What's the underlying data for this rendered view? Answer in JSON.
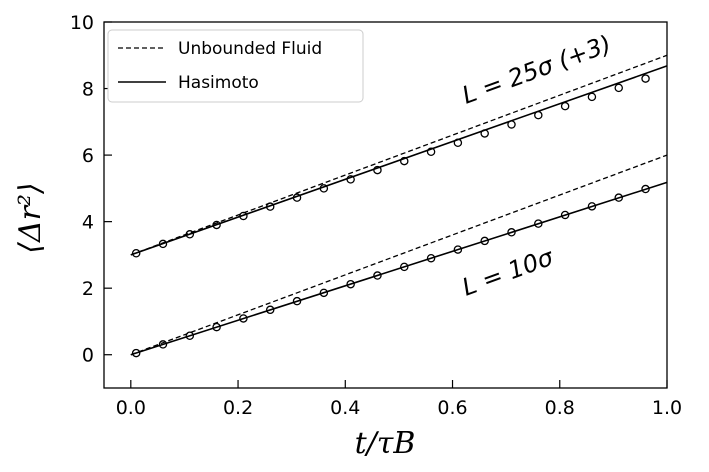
{
  "chart_data": {
    "type": "line",
    "xlabel": "t/τB",
    "ylabel": "⟨Δr²⟩",
    "xlim": [
      -0.05,
      1.0
    ],
    "ylim": [
      -1,
      10
    ],
    "xticks": [
      0.0,
      0.2,
      0.4,
      0.6,
      0.8,
      1.0
    ],
    "xtick_labels": [
      "0.0",
      "0.2",
      "0.4",
      "0.6",
      "0.8",
      "1.0"
    ],
    "yticks": [
      0,
      2,
      4,
      6,
      8,
      10
    ],
    "ytick_labels": [
      "0",
      "2",
      "4",
      "6",
      "8",
      "10"
    ],
    "legend_position": "top-left",
    "legend": [
      {
        "label": "Unbounded Fluid",
        "style": "dashed"
      },
      {
        "label": "Hasimoto",
        "style": "solid"
      }
    ],
    "series": [
      {
        "group": "L25",
        "kind": "unbounded",
        "style": "dashed",
        "x": [
          0.0,
          1.0
        ],
        "y": [
          3.0,
          9.0
        ]
      },
      {
        "group": "L25",
        "kind": "hasimoto",
        "style": "solid",
        "x": [
          0.0,
          1.0
        ],
        "y": [
          3.0,
          8.68
        ]
      },
      {
        "group": "L10",
        "kind": "unbounded",
        "style": "dashed",
        "x": [
          0.0,
          1.0
        ],
        "y": [
          0.0,
          6.0
        ]
      },
      {
        "group": "L10",
        "kind": "hasimoto",
        "style": "solid",
        "x": [
          0.0,
          1.0
        ],
        "y": [
          0.0,
          5.18
        ]
      },
      {
        "group": "L25",
        "kind": "simulation",
        "style": "markers",
        "x": [
          0.01,
          0.06,
          0.11,
          0.16,
          0.21,
          0.26,
          0.31,
          0.36,
          0.41,
          0.46,
          0.51,
          0.56,
          0.61,
          0.66,
          0.71,
          0.76,
          0.81,
          0.86,
          0.91,
          0.96
        ],
        "y": [
          3.05,
          3.33,
          3.62,
          3.9,
          4.17,
          4.45,
          4.72,
          5.0,
          5.27,
          5.55,
          5.82,
          6.1,
          6.37,
          6.65,
          6.92,
          7.2,
          7.47,
          7.75,
          8.02,
          8.3
        ]
      },
      {
        "group": "L10",
        "kind": "simulation",
        "style": "markers",
        "x": [
          0.01,
          0.06,
          0.11,
          0.16,
          0.21,
          0.26,
          0.31,
          0.36,
          0.41,
          0.46,
          0.51,
          0.56,
          0.61,
          0.66,
          0.71,
          0.76,
          0.81,
          0.86,
          0.91,
          0.96
        ],
        "y": [
          0.05,
          0.31,
          0.57,
          0.83,
          1.09,
          1.35,
          1.61,
          1.86,
          2.12,
          2.38,
          2.64,
          2.9,
          3.16,
          3.42,
          3.68,
          3.94,
          4.2,
          4.46,
          4.72,
          4.98
        ]
      }
    ],
    "annotations": [
      {
        "text": "L = 25σ   (+3)",
        "group": "L25"
      },
      {
        "text": "L = 10σ",
        "group": "L10"
      }
    ]
  }
}
